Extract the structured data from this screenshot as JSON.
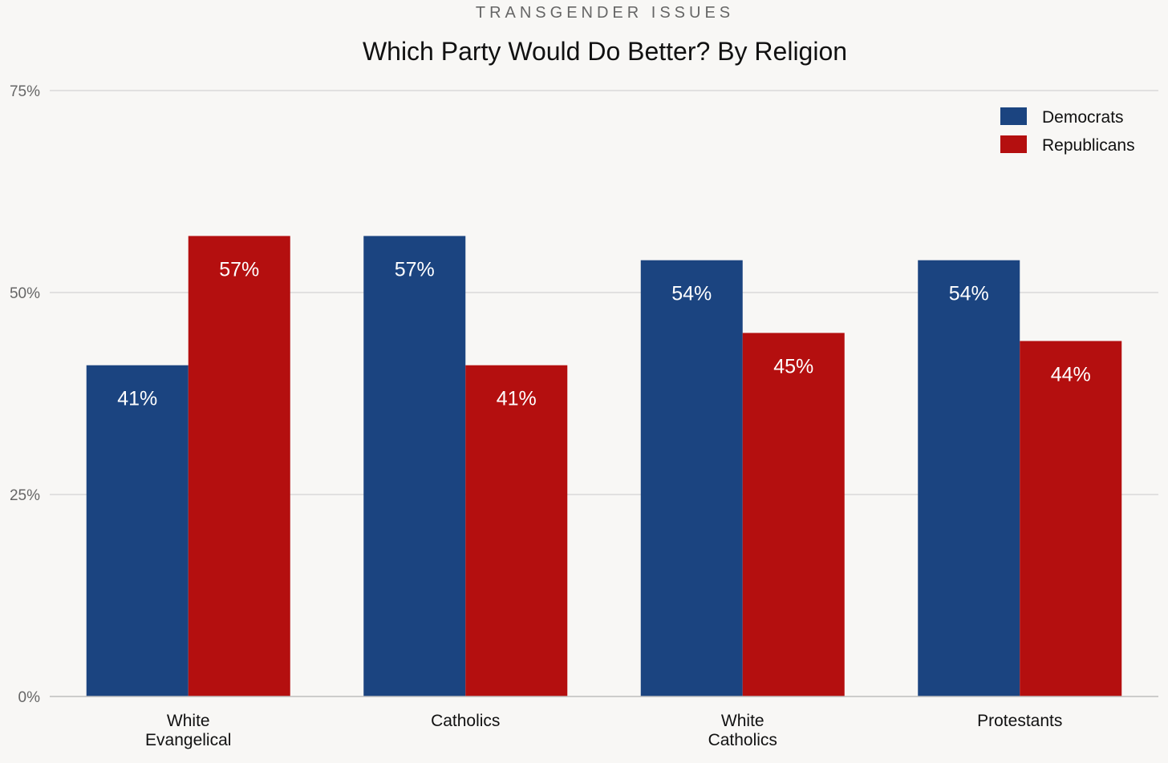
{
  "chart_data": {
    "type": "bar",
    "kicker": "TRANSGENDER ISSUES",
    "title": "Which Party Would Do Better? By Religion",
    "categories": [
      [
        "White",
        "Evangelical"
      ],
      [
        "Catholics"
      ],
      [
        "White",
        "Catholics"
      ],
      [
        "Protestants"
      ]
    ],
    "series": [
      {
        "name": "Democrats",
        "color": "#1b4480",
        "values": [
          41,
          57,
          54,
          54
        ]
      },
      {
        "name": "Republicans",
        "color": "#b40f0f",
        "values": [
          57,
          41,
          45,
          44
        ]
      }
    ],
    "value_suffix": "%",
    "ylim": [
      0,
      75
    ],
    "yticks": [
      0,
      25,
      50,
      75
    ],
    "ytick_labels": [
      "0%",
      "25%",
      "50%",
      "75%"
    ],
    "grid": true,
    "legend_position": "top-right",
    "data_labels": "inside-top"
  }
}
